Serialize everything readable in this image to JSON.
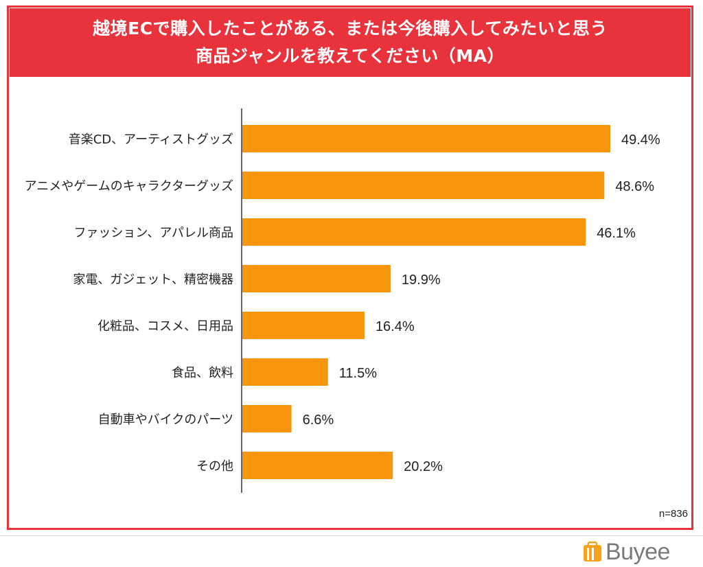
{
  "title": {
    "line1": "越境ECで購入したことがある、または今後購入してみたいと思う",
    "line2": "商品ジャンルを教えてください（MA）"
  },
  "sample_note": "n=836",
  "logo_text": "Buyee",
  "colors": {
    "accent": "#e8323c",
    "bar": "#f7960d"
  },
  "chart_data": {
    "type": "bar",
    "orientation": "horizontal",
    "categories": [
      "音楽CD、アーティストグッズ",
      "アニメやゲームのキャラクターグッズ",
      "ファッション、アパレル商品",
      "家電、ガジェット、精密機器",
      "化粧品、コスメ、日用品",
      "食品、飲料",
      "自動車やバイクのパーツ",
      "その他"
    ],
    "values": [
      49.4,
      48.6,
      46.1,
      19.9,
      16.4,
      11.5,
      6.6,
      20.2
    ],
    "value_labels": [
      "49.4%",
      "48.6%",
      "46.1%",
      "19.9%",
      "16.4%",
      "11.5%",
      "6.6%",
      "20.2%"
    ],
    "xlim": [
      0,
      50
    ],
    "grid": false,
    "legend": "none"
  }
}
